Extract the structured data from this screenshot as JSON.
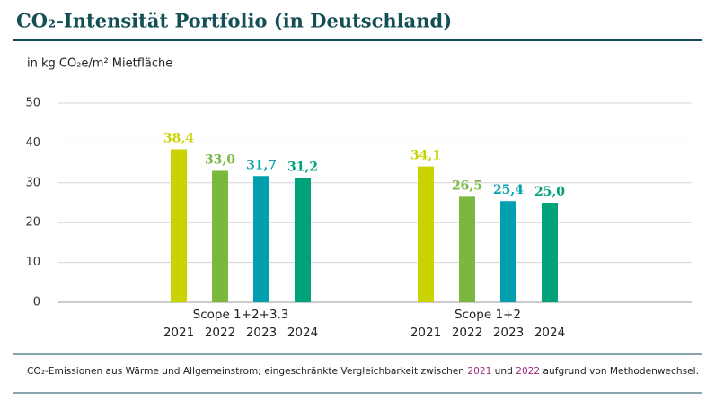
{
  "chart_data": {
    "type": "bar",
    "title": "CO₂-Intensität Portfolio (in Deutschland)",
    "y_label": "in kg CO₂e/m² Mietfläche",
    "categories": [
      "Scope 1+2+3.3",
      "Scope 1+2"
    ],
    "series": [
      {
        "name": "2021",
        "color": "#c8d300",
        "values": [
          38.4,
          34.1
        ],
        "value_labels": [
          "38,4",
          "34,1"
        ]
      },
      {
        "name": "2022",
        "color": "#7ab840",
        "values": [
          33.0,
          26.5
        ],
        "value_labels": [
          "33,0",
          "26,5"
        ]
      },
      {
        "name": "2023",
        "color": "#00a0ae",
        "values": [
          31.7,
          25.4
        ],
        "value_labels": [
          "31,7",
          "25,4"
        ]
      },
      {
        "name": "2024",
        "color": "#00a27c",
        "values": [
          31.2,
          25.0
        ],
        "value_labels": [
          "31,2",
          "25,0"
        ]
      }
    ],
    "ylim": [
      0,
      50
    ],
    "yticks": [
      0,
      10,
      20,
      30,
      40,
      50
    ],
    "grid": true,
    "note": [
      "CO₂-Emissionen aus Wärme und Allgemeinstrom; eingeschränkte Vergleichbarkeit zwischen ",
      "2021",
      " und ",
      "2022",
      " aufgrund von Methodenwechsel."
    ],
    "note_highlight_color": "#9b2f7f"
  }
}
